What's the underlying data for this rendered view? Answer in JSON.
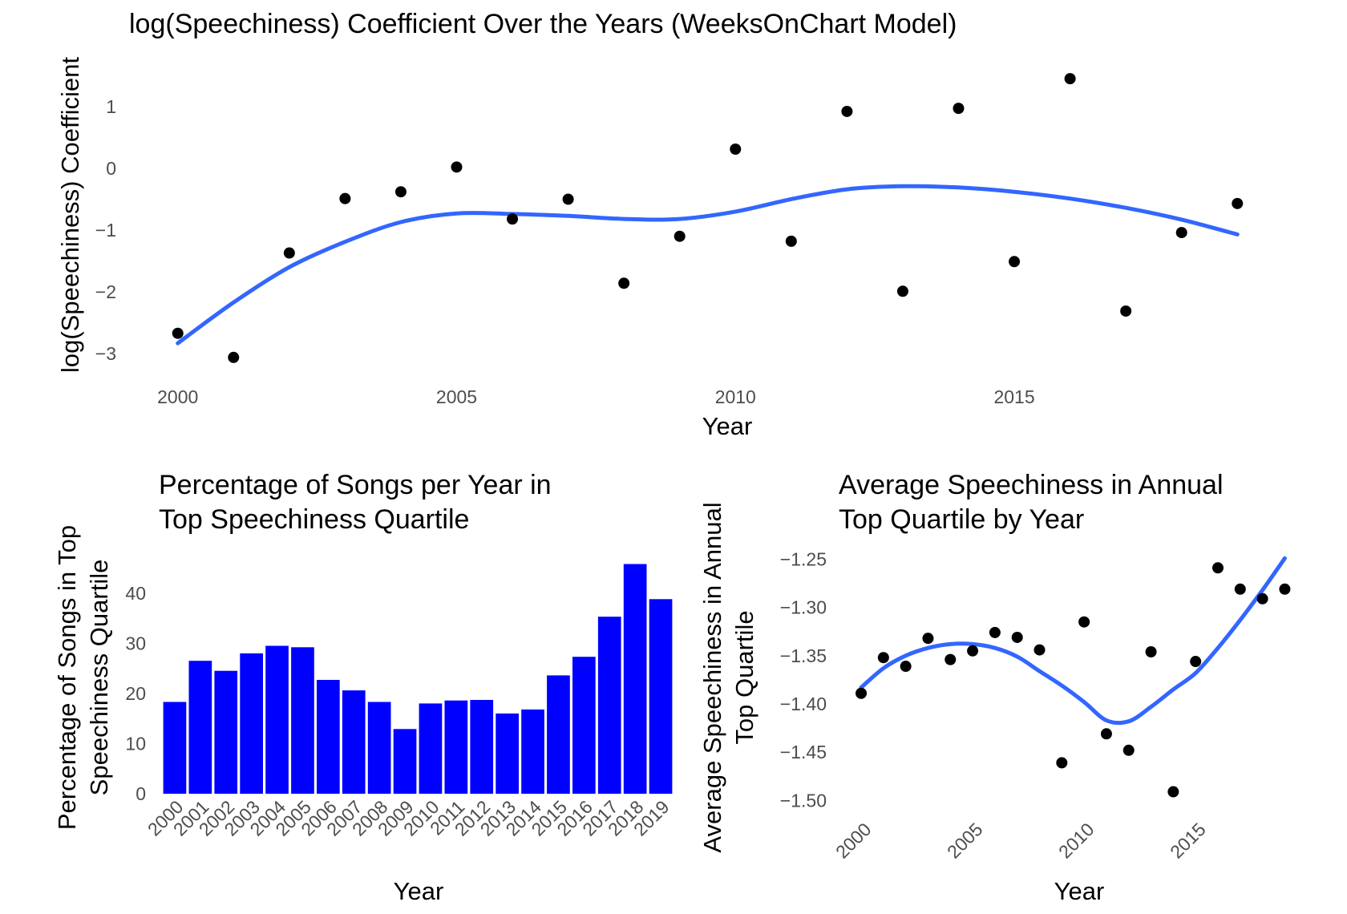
{
  "colors": {
    "points": "#000000",
    "smooth_line": "#3366FF",
    "bars": "#0000FF",
    "tick_text": "#4d4d4d",
    "background": "#ffffff"
  },
  "chart_data": [
    {
      "type": "scatter",
      "title": "log(Speechiness) Coefficient Over the Years (WeeksOnChart Model)",
      "xlabel": "Year",
      "ylabel": "log(Speechiness) Coefficient",
      "xlim": [
        1999.4,
        2019.6
      ],
      "ylim": [
        -3.4,
        1.75
      ],
      "x_ticks": [
        2000,
        2005,
        2010,
        2015
      ],
      "y_ticks": [
        -3,
        -2,
        -1,
        0,
        1
      ],
      "grid": false,
      "x": [
        2000,
        2001,
        2002,
        2003,
        2004,
        2005,
        2006,
        2007,
        2008,
        2009,
        2010,
        2011,
        2012,
        2013,
        2014,
        2015,
        2016,
        2017,
        2018,
        2019
      ],
      "y": [
        -2.67,
        -3.06,
        -1.37,
        -0.49,
        -0.38,
        0.02,
        -0.82,
        -0.5,
        -1.86,
        -1.1,
        0.31,
        -1.18,
        0.92,
        -1.99,
        0.97,
        -1.51,
        1.45,
        -2.31,
        -1.04,
        -0.57
      ],
      "smooth": {
        "x": [
          2000,
          2001,
          2002,
          2003,
          2004,
          2005,
          2006,
          2007,
          2008,
          2009,
          2010,
          2011,
          2012,
          2013,
          2014,
          2015,
          2016,
          2017,
          2018,
          2019
        ],
        "y": [
          -2.83,
          -2.17,
          -1.6,
          -1.19,
          -0.87,
          -0.73,
          -0.74,
          -0.77,
          -0.82,
          -0.82,
          -0.7,
          -0.5,
          -0.34,
          -0.29,
          -0.31,
          -0.38,
          -0.49,
          -0.64,
          -0.83,
          -1.07
        ]
      }
    },
    {
      "type": "bar",
      "title": "Percentage of Songs per Year in Top Speechiness Quartile",
      "title_lines": [
        "Percentage of Songs per Year in",
        "Top Speechiness Quartile"
      ],
      "xlabel": "Year",
      "ylabel": "Percentage of Songs in Top Speechiness Quartile",
      "ylabel_lines": [
        "Percentage of Songs in Top",
        "Speechiness Quartile"
      ],
      "categories": [
        "2000",
        "2001",
        "2002",
        "2003",
        "2004",
        "2005",
        "2006",
        "2007",
        "2008",
        "2009",
        "2010",
        "2011",
        "2012",
        "2013",
        "2014",
        "2015",
        "2016",
        "2017",
        "2018",
        "2019"
      ],
      "values": [
        18.3,
        26.5,
        24.5,
        28,
        29.5,
        29.2,
        22.7,
        20.6,
        18.3,
        12.9,
        18,
        18.6,
        18.7,
        16,
        16.8,
        23.6,
        27.3,
        35.3,
        45.8,
        38.8
      ],
      "ylim": [
        0,
        47
      ],
      "y_ticks": [
        0,
        10,
        20,
        30,
        40
      ],
      "grid": false
    },
    {
      "type": "scatter",
      "title": "Average Speechiness in Annual Top Quartile by Year",
      "title_lines": [
        "Average Speechiness in Annual",
        "Top Quartile by Year"
      ],
      "xlabel": "Year",
      "ylabel": "Average Speechiness in Annual Top Quartile",
      "ylabel_lines": [
        "Average Speechiness in Annual",
        "Top Quartile"
      ],
      "xlim": [
        1999.1,
        2020.1
      ],
      "ylim": [
        -1.513,
        -1.233
      ],
      "x_ticks": [
        2000,
        2005,
        2010,
        2015
      ],
      "y_ticks": [
        -1.5,
        -1.45,
        -1.4,
        -1.35,
        -1.3,
        -1.25
      ],
      "y_tick_labels": [
        "−1.50",
        "−1.45",
        "−1.40",
        "−1.35",
        "−1.30",
        "−1.25"
      ],
      "grid": false,
      "x": [
        2000,
        2001,
        2002,
        2003,
        2004,
        2005,
        2006,
        2007,
        2008,
        2009,
        2010,
        2011,
        2012,
        2013,
        2014,
        2015,
        2016,
        2017,
        2018,
        2019
      ],
      "y": [
        -1.389,
        -1.352,
        -1.361,
        -1.332,
        -1.354,
        -1.345,
        -1.326,
        -1.331,
        -1.344,
        -1.461,
        -1.315,
        -1.431,
        -1.448,
        -1.346,
        -1.491,
        -1.356,
        -1.259,
        -1.281,
        -1.291,
        -1.281
      ],
      "smooth": {
        "x": [
          2000,
          2001,
          2002,
          2003,
          2004,
          2005,
          2006,
          2007,
          2008,
          2009,
          2010,
          2011,
          2012,
          2013,
          2014,
          2015,
          2016,
          2017,
          2018,
          2019
        ],
        "y": [
          -1.383,
          -1.363,
          -1.35,
          -1.342,
          -1.338,
          -1.338,
          -1.342,
          -1.351,
          -1.366,
          -1.381,
          -1.398,
          -1.417,
          -1.418,
          -1.403,
          -1.385,
          -1.368,
          -1.342,
          -1.313,
          -1.282,
          -1.249
        ]
      }
    }
  ]
}
